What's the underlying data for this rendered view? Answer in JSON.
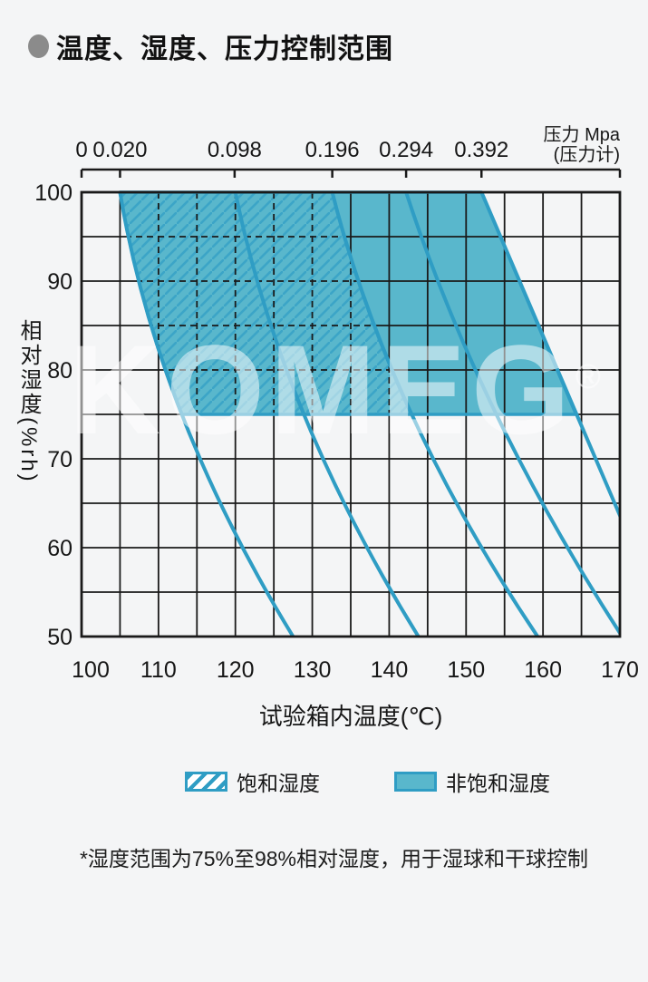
{
  "header": {
    "title": "温度、湿度、压力控制范围"
  },
  "watermark": {
    "text": "KOMEG",
    "reg": "®"
  },
  "legend": {
    "saturated_label": "饱和湿度",
    "unsaturated_label": "非饱和湿度"
  },
  "footnote": "*湿度范围为75%至98%相对湿度，用于湿球和干球控制",
  "chart_data": {
    "type": "area",
    "title": "温度、湿度、压力控制范围",
    "x_axis": {
      "label": "试验箱内温度(℃)",
      "min": 100,
      "max": 170,
      "grid_step": 5,
      "ticks": [
        100,
        110,
        120,
        130,
        140,
        150,
        160,
        170
      ]
    },
    "y_axis": {
      "label": "相对湿度(%rh)",
      "min": 50,
      "max": 100,
      "grid_step": 5,
      "ticks": [
        100,
        90,
        80,
        70,
        60,
        50
      ]
    },
    "pressure_axis": {
      "label_line1": "压力 Mpa",
      "label_line2": "(压力计)",
      "unit": "MPa",
      "ticks": [
        {
          "label": "0",
          "t": 100
        },
        {
          "label": "0.020",
          "t": 105
        },
        {
          "label": "0.098",
          "t": 119.9
        },
        {
          "label": "0.196",
          "t": 132.6
        },
        {
          "label": "0.294",
          "t": 142.2
        },
        {
          "label": "0.392",
          "t": 152
        },
        {
          "label": "",
          "t": 170
        }
      ]
    },
    "curves": [
      {
        "pressure_mpa": "0.020",
        "t_at_rh": {
          "100": 105,
          "75": 113,
          "50": 127.5
        },
        "bezier": [
          [
            "M",
            105,
            100
          ],
          [
            "Q",
            109.8,
            75,
            127.5,
            50
          ]
        ]
      },
      {
        "pressure_mpa": "0.098",
        "t_at_rh": {
          "100": 120,
          "75": 128.9,
          "50": 143.8
        },
        "bezier": [
          [
            "M",
            120,
            100
          ],
          [
            "Q",
            125.9,
            75,
            143.8,
            50
          ]
        ]
      },
      {
        "pressure_mpa": "0.196",
        "t_at_rh": {
          "100": 132.6,
          "75": 142.9,
          "50": 159.3
        },
        "bezier": [
          [
            "M",
            132.6,
            100
          ],
          [
            "Q",
            139.9,
            75,
            159.3,
            50
          ]
        ]
      },
      {
        "pressure_mpa": "0.294",
        "t_at_rh": {
          "100": 142.2,
          "75": 153.9,
          "50": 170.3
        },
        "bezier": [
          [
            "M",
            142.2,
            100
          ],
          [
            "Q",
            151.6,
            75,
            170.3,
            50
          ]
        ]
      },
      {
        "pressure_mpa": "0.392",
        "t_at_rh": {
          "100": 152,
          "75": 164.3,
          "62": 170.8
        },
        "bezier": [
          [
            "M",
            152,
            100
          ],
          [
            "Q",
            161.4,
            81,
            170.8,
            62
          ]
        ]
      }
    ],
    "regions": {
      "saturated": {
        "label": "饱和湿度",
        "style": "hatched",
        "rh_range": [
          75,
          100
        ],
        "path": [
          [
            "M",
            105,
            100
          ],
          [
            "Q",
            107.4,
            87.5,
            113,
            75
          ],
          [
            "L",
            142.9,
            75
          ],
          [
            "Q",
            136.2,
            87.5,
            132.6,
            100
          ],
          [
            "Z"
          ]
        ]
      },
      "unsaturated": {
        "label": "非饱和湿度",
        "style": "solid",
        "rh_range": [
          75,
          100
        ],
        "path": [
          [
            "M",
            132.6,
            100
          ],
          [
            "Q",
            136.2,
            87.5,
            142.9,
            75
          ],
          [
            "L",
            164.3,
            75
          ],
          [
            "Q",
            158.2,
            87.5,
            152,
            100
          ],
          [
            "Z"
          ]
        ]
      }
    },
    "colors": {
      "fill": "#59b7cc",
      "line": "#2f9dc4",
      "grid": "#1a1a1a",
      "text": "#161616",
      "page_bg": "#f4f5f6",
      "bullet": "#8b8b8b",
      "watermark": "rgba(255,255,255,0.52)"
    }
  }
}
